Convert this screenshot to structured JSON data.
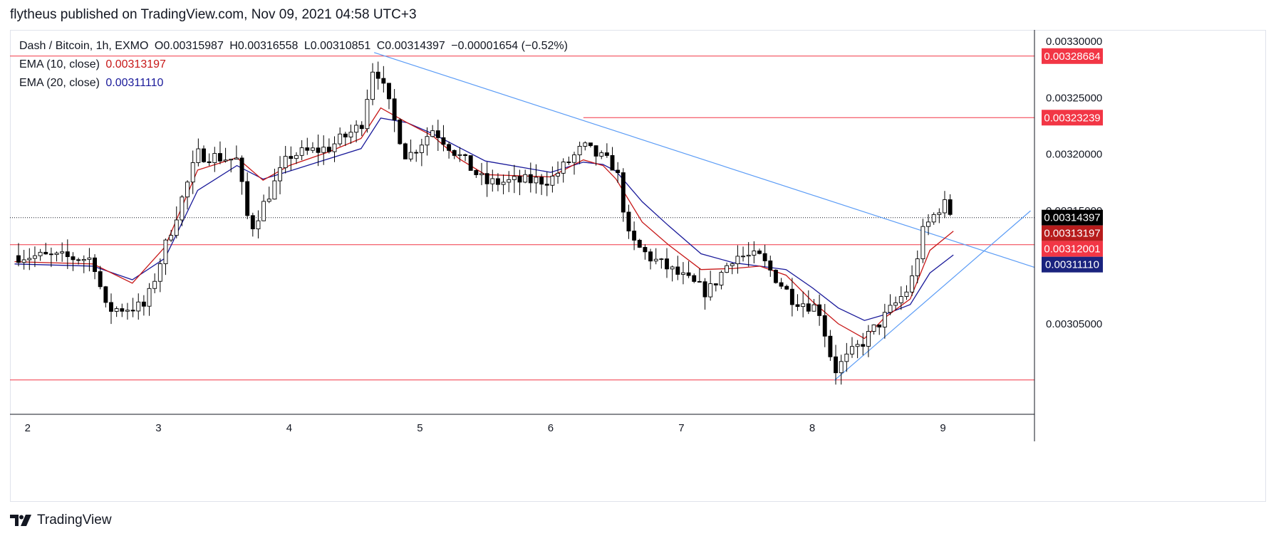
{
  "publisher_line": "flytheus published on TradingView.com, Nov 09, 2021 04:58 UTC+3",
  "legend": {
    "symbol": "Dash / Bitcoin, 1h, EXMO",
    "open_label": "O",
    "open": "0.00315987",
    "high_label": "H",
    "high": "0.00316558",
    "low_label": "L",
    "low": "0.00310851",
    "close_label": "C",
    "close": "0.00314397",
    "change": "−0.00001654 (−0.52%)",
    "ema10_label": "EMA (10, close)",
    "ema10_value": "0.00313197",
    "ema20_label": "EMA (20, close)",
    "ema20_value": "0.00311110"
  },
  "footer": {
    "brand": "TradingView",
    "logo_icon": "tradingview-logo-icon"
  },
  "colors": {
    "up_candle_fill": "#ffffff",
    "down_candle_fill": "#000000",
    "candle_border": "#000000",
    "ema10": "#c71717",
    "ema20": "#1a1a9a",
    "horizontal_level": "#f23645",
    "trendline": "#5b9cf6",
    "price_badge": "#f23645",
    "last_price_badge": "#000000",
    "ema10_badge": "#b71c1c",
    "ema20_badge": "#1a237e"
  },
  "chart_data": {
    "type": "candlestick",
    "x_ticks": [
      "2",
      "3",
      "4",
      "5",
      "6",
      "7",
      "8",
      "9"
    ],
    "y_ticks": [
      "0.00330000",
      "0.00325000",
      "0.00320000",
      "0.00315000",
      "0.00305000"
    ],
    "ylim": [
      0.00297,
      0.00331
    ],
    "horizontal_levels": [
      0.00328684,
      0.00323239,
      0.00312001,
      0.00300038
    ],
    "price_badges": [
      {
        "label": "0.00328684",
        "value": 0.00328684,
        "kind": "level"
      },
      {
        "label": "0.00323239",
        "value": 0.00323239,
        "kind": "level"
      },
      {
        "label": "0.00314397",
        "value": 0.00314397,
        "kind": "last"
      },
      {
        "label": "0.00313197",
        "value": 0.00313197,
        "kind": "ema10"
      },
      {
        "label": "0.00312001",
        "value": 0.00312001,
        "kind": "level"
      },
      {
        "label": "0.00311110",
        "value": 0.0031111,
        "kind": "ema20"
      }
    ],
    "last_price": 0.00314397,
    "trendlines": [
      {
        "from": [
          4.65,
          0.00329
        ],
        "to": [
          9.7,
          0.0031
        ]
      },
      {
        "from": [
          8.17,
          0.003
        ],
        "to": [
          9.67,
          0.00315
        ]
      }
    ],
    "anchors": {
      "t": [
        1.9,
        2.5,
        2.6,
        2.9,
        3.05,
        3.3,
        3.6,
        3.7,
        4.0,
        4.3,
        4.55,
        4.65,
        4.9,
        5.1,
        5.5,
        6.0,
        6.25,
        6.5,
        6.6,
        6.75,
        7.2,
        7.4,
        7.6,
        7.85,
        8.05,
        8.17,
        8.4,
        8.6,
        8.75,
        8.85,
        9.0,
        9.08
      ],
      "c": [
        3.1105,
        3.1075,
        3.0625,
        3.0655,
        3.118,
        3.2,
        3.195,
        3.1325,
        3.199,
        3.2055,
        3.2255,
        3.2825,
        3.1965,
        3.2225,
        3.1745,
        3.1775,
        3.2065,
        3.1885,
        3.1245,
        3.1095,
        3.0775,
        3.1105,
        3.1085,
        3.0725,
        3.0635,
        3.0085,
        3.0355,
        3.0625,
        3.0835,
        3.1325,
        3.1575,
        3.1445
      ]
    },
    "ema10": {
      "t": [
        1.9,
        2.5,
        2.8,
        3.05,
        3.3,
        3.6,
        3.8,
        4.0,
        4.3,
        4.55,
        4.7,
        4.9,
        5.1,
        5.3,
        5.5,
        6.0,
        6.25,
        6.4,
        6.5,
        6.7,
        6.9,
        7.15,
        7.4,
        7.6,
        7.8,
        8.0,
        8.2,
        8.4,
        8.55,
        8.75,
        8.9,
        9.08
      ],
      "v": [
        3.105,
        3.103,
        3.086,
        3.118,
        3.186,
        3.197,
        3.177,
        3.19,
        3.202,
        3.214,
        3.241,
        3.228,
        3.216,
        3.196,
        3.182,
        3.18,
        3.195,
        3.19,
        3.178,
        3.14,
        3.12,
        3.098,
        3.099,
        3.101,
        3.093,
        3.07,
        3.05,
        3.037,
        3.055,
        3.072,
        3.115,
        3.132
      ]
    },
    "ema20": {
      "t": [
        1.9,
        2.5,
        2.8,
        3.05,
        3.3,
        3.6,
        3.8,
        4.0,
        4.3,
        4.55,
        4.7,
        4.9,
        5.1,
        5.3,
        5.5,
        6.0,
        6.25,
        6.4,
        6.5,
        6.7,
        6.9,
        7.15,
        7.4,
        7.6,
        7.8,
        8.0,
        8.2,
        8.4,
        8.55,
        8.75,
        8.9,
        9.08
      ],
      "v": [
        3.103,
        3.101,
        3.089,
        3.108,
        3.168,
        3.19,
        3.178,
        3.185,
        3.196,
        3.205,
        3.232,
        3.228,
        3.218,
        3.206,
        3.194,
        3.184,
        3.193,
        3.191,
        3.185,
        3.158,
        3.137,
        3.112,
        3.104,
        3.101,
        3.098,
        3.082,
        3.064,
        3.053,
        3.058,
        3.067,
        3.095,
        3.111
      ]
    }
  }
}
